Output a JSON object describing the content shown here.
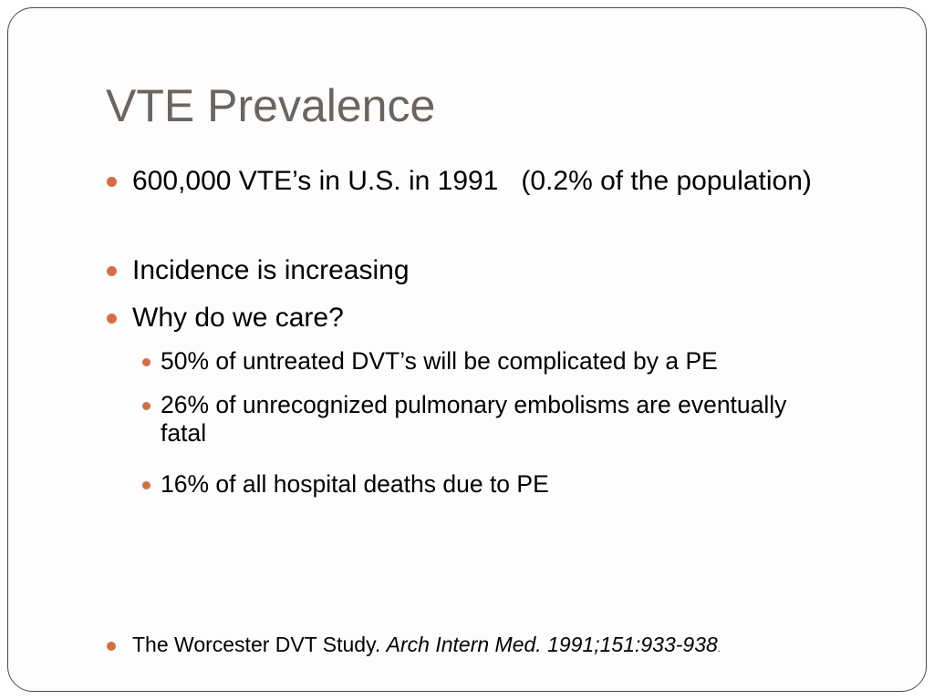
{
  "slide": {
    "title": "VTE Prevalence",
    "bullets": [
      {
        "text": "600,000 VTE’s in U.S. in 1991   (0.2% of the population)"
      },
      {
        "text": "Incidence is increasing"
      },
      {
        "text": "Why do we care?"
      }
    ],
    "sub_bullets": [
      {
        "text": "50% of untreated DVT’s will be complicated by a PE"
      },
      {
        "text": "26% of unrecognized pulmonary embolisms are eventually fatal"
      },
      {
        "text": "16% of all hospital deaths due to PE"
      }
    ],
    "reference": {
      "lead": "The Worcester DVT Study. ",
      "citation": "Arch Intern Med. 1991;151:933-938",
      "tail": "."
    },
    "colors": {
      "bullet": "#d46f45",
      "title": "#6b6461",
      "border": "#4a4a4a"
    }
  }
}
